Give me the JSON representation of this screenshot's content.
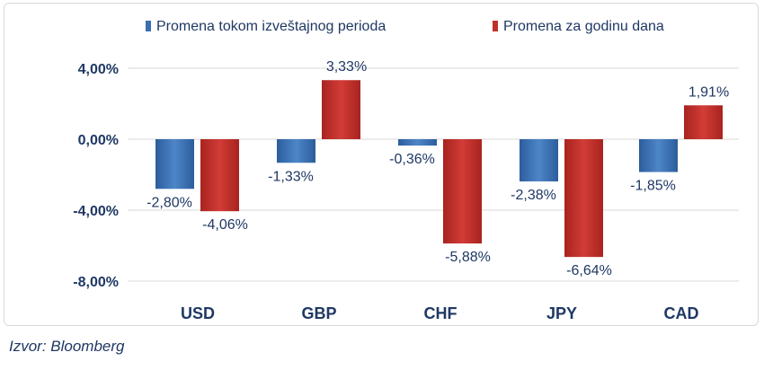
{
  "chart_data": {
    "type": "bar",
    "categories": [
      "USD",
      "GBP",
      "CHF",
      "JPY",
      "CAD"
    ],
    "series": [
      {
        "name": "Promena tokom izveštajnog perioda",
        "values": [
          -2.8,
          -1.33,
          -0.36,
          -2.38,
          -1.85
        ],
        "labels": [
          "-2,80%",
          "-1,33%",
          "-0,36%",
          "-2,38%",
          "-1,85%"
        ],
        "color": "#3a6fb0"
      },
      {
        "name": "Promena za godinu dana",
        "values": [
          -4.06,
          3.33,
          -5.88,
          -6.64,
          1.91
        ],
        "labels": [
          "-4,06%",
          "3,33%",
          "-5,88%",
          "-6,64%",
          "1,91%"
        ],
        "color": "#c0302b"
      }
    ],
    "yticks": [
      4,
      0,
      -4,
      -8
    ],
    "ytick_labels": [
      "4,00%",
      "0,00%",
      "-4,00%",
      "-8,00%"
    ],
    "ylim": [
      -8,
      4
    ],
    "grid": true,
    "legend": "top"
  },
  "source": "Izvor: Bloomberg"
}
